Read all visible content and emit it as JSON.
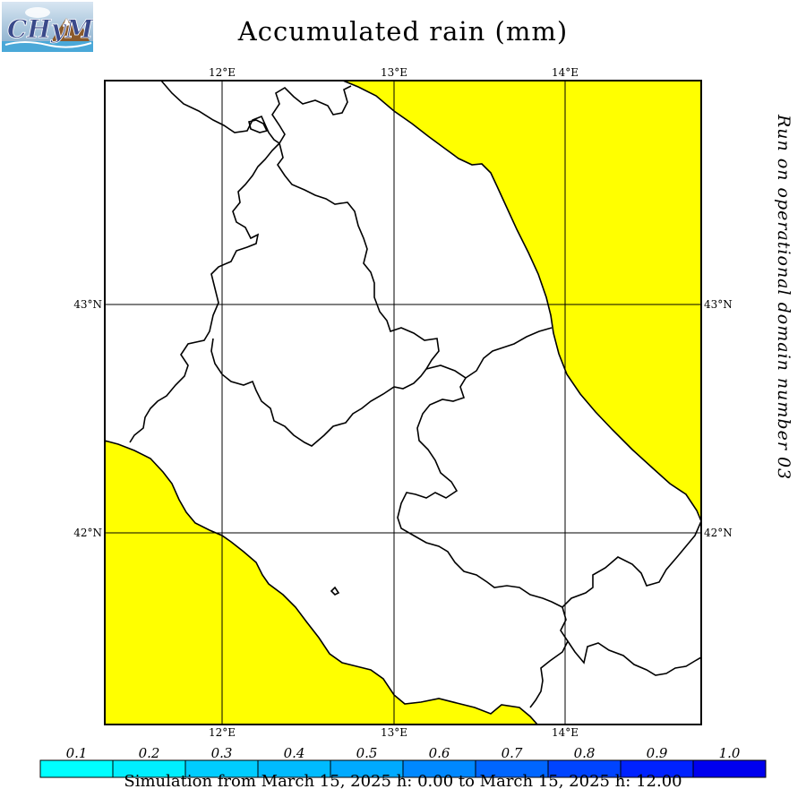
{
  "header": {
    "logo_text": "CHyM",
    "title": "Accumulated rain (mm)"
  },
  "map": {
    "lon_ticks": [
      "12°E",
      "13°E",
      "14°E"
    ],
    "lat_ticks": [
      "43°N",
      "42°N"
    ],
    "sea_color": "#ffff00",
    "grid_color": "#000000"
  },
  "side_label": "Run on operational domain number 03",
  "legend": {
    "labels": [
      "0.1",
      "0.2",
      "0.3",
      "0.4",
      "0.5",
      "0.6",
      "0.7",
      "0.8",
      "0.9",
      "1.0"
    ],
    "colors": [
      "#00ffff",
      "#00eeff",
      "#00ccff",
      "#00bbff",
      "#00aaff",
      "#0088ff",
      "#0066ff",
      "#0044ff",
      "#0022ff",
      "#0000ee"
    ]
  },
  "footer": {
    "simulation": "Simulation from March 15, 2025 h: 0.00 to March 15, 2025 h: 12.00"
  }
}
